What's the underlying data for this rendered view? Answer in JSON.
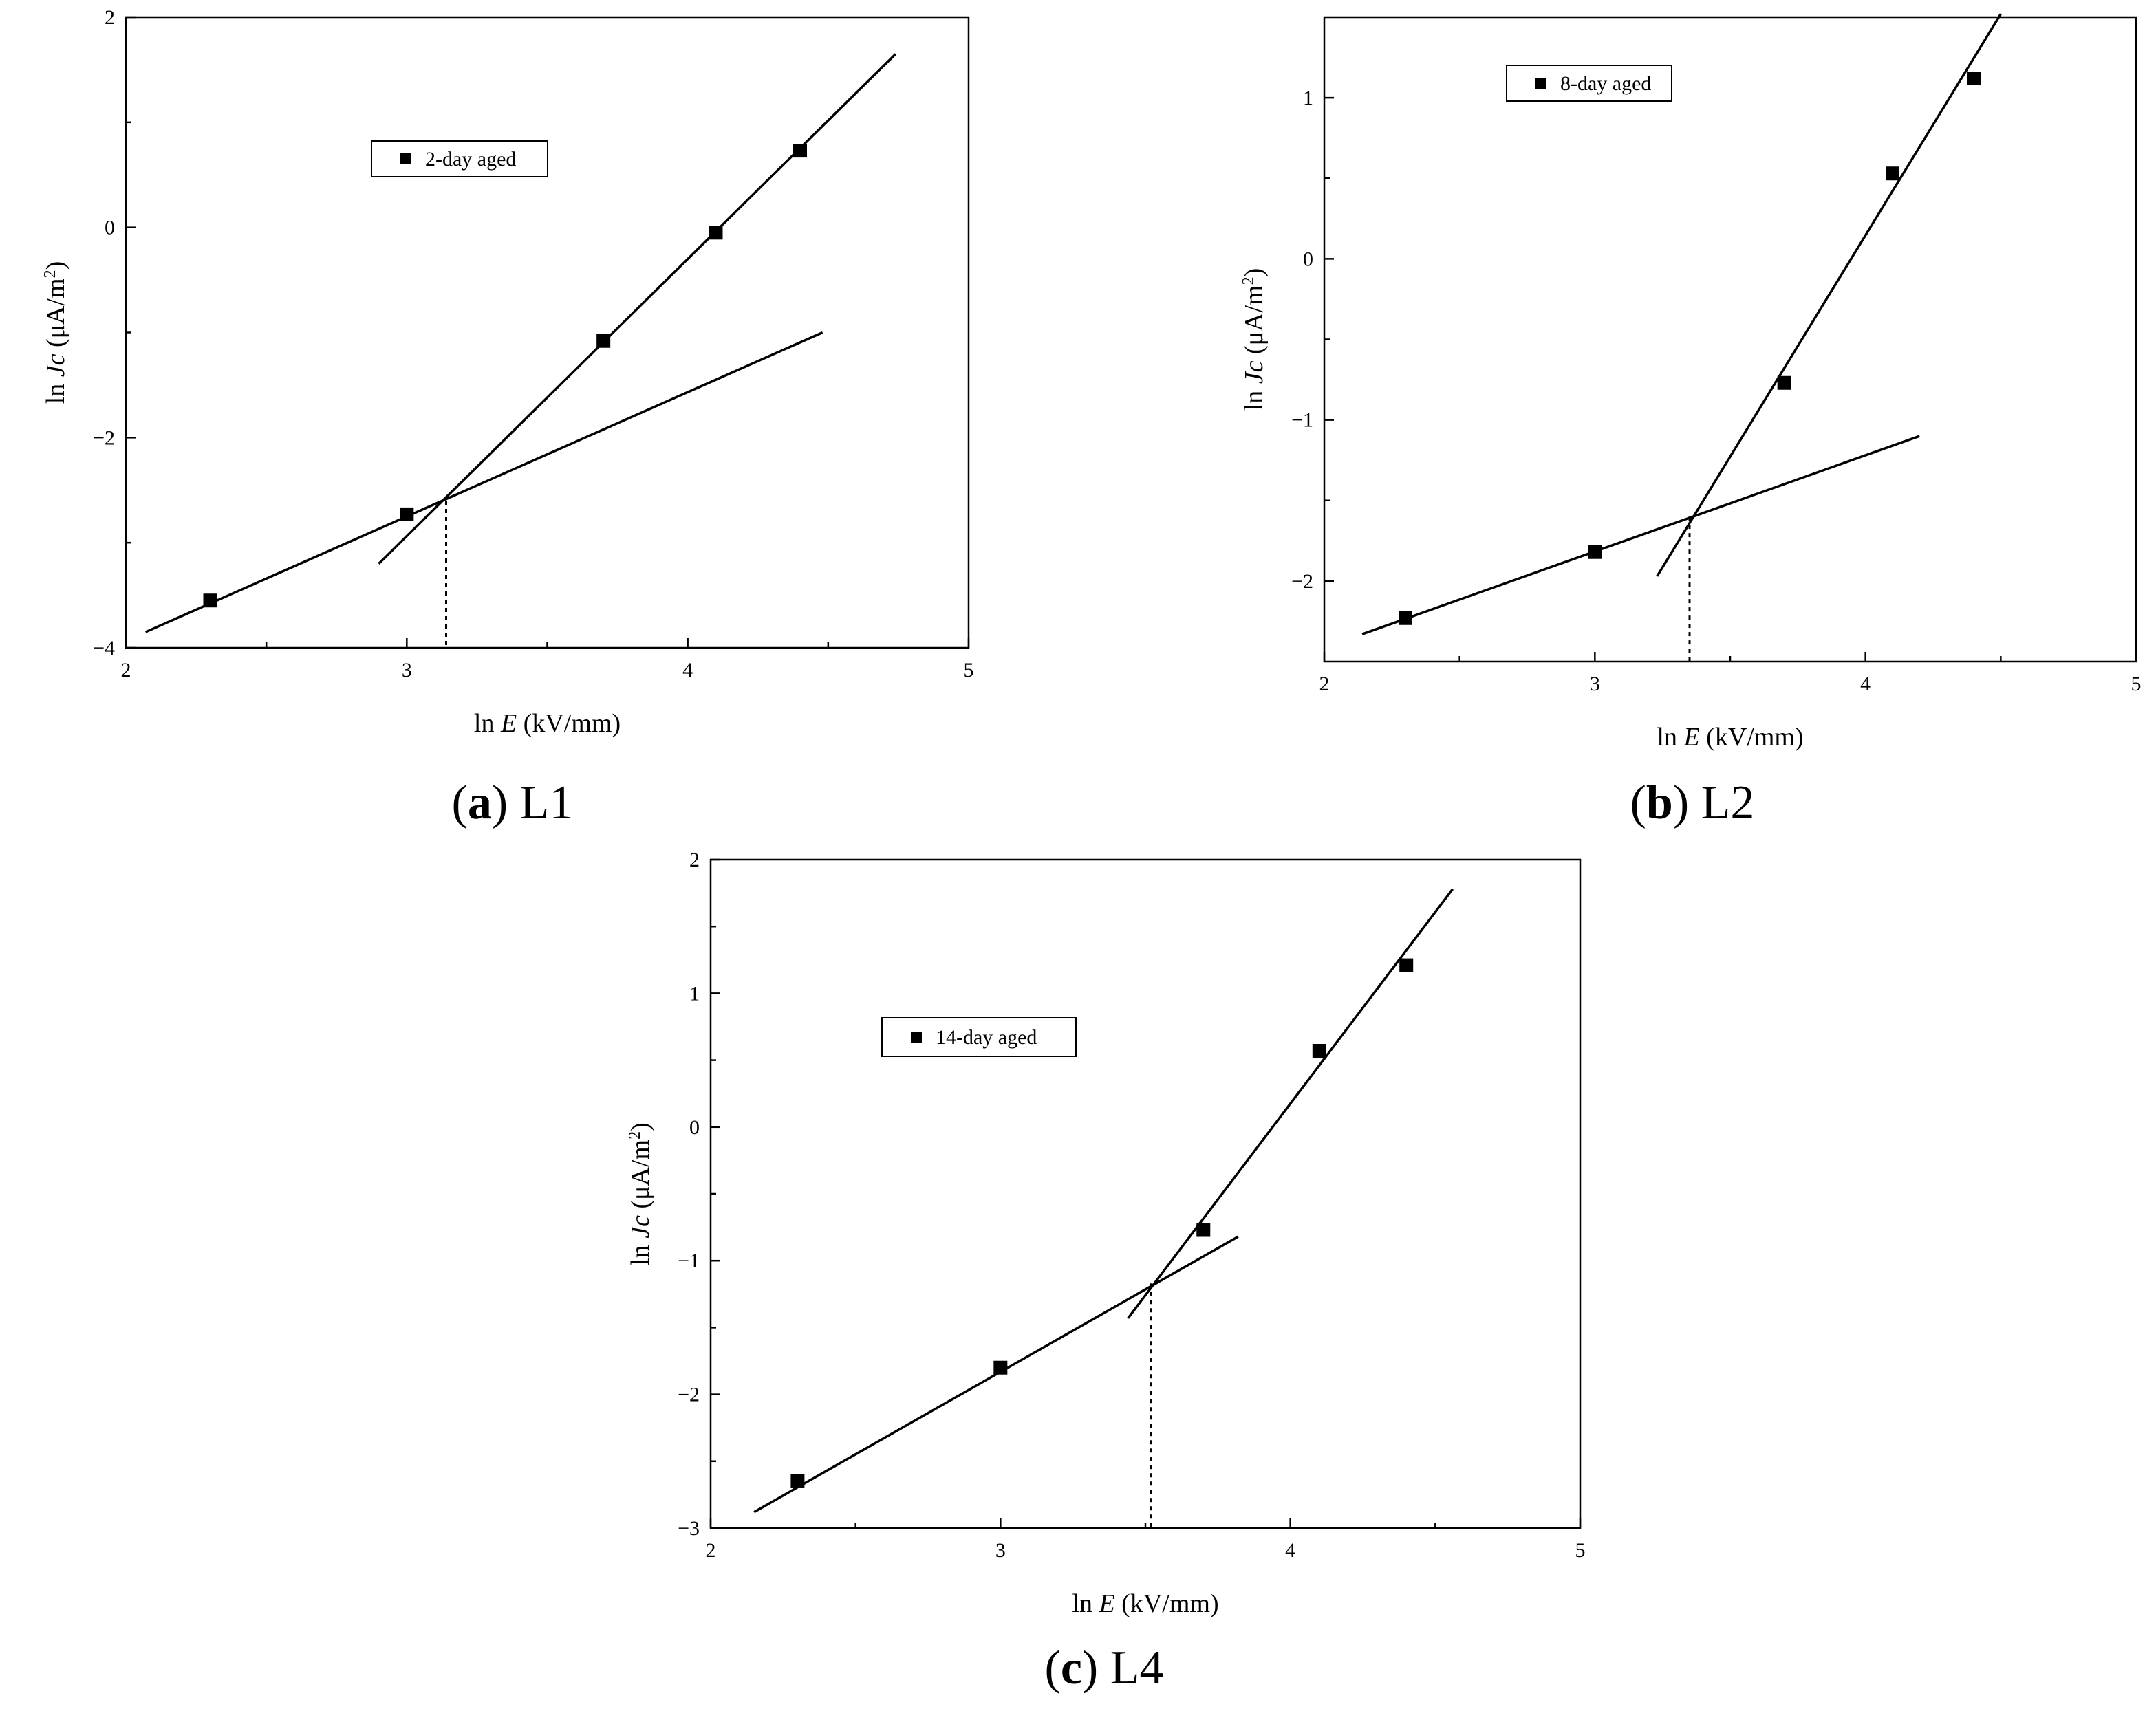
{
  "chart_data": [
    {
      "type": "scatter",
      "caption_letter": "a",
      "caption_name": "L1",
      "xlabel_prefix": "ln ",
      "xlabel_var": "E",
      "xlabel_unit": " (kV/mm)",
      "ylabel_prefix": "ln ",
      "ylabel_var": "Jc",
      "ylabel_unit": " (μA/m",
      "ylabel_sup": "2",
      "ylabel_close": ")",
      "xlim": [
        2,
        5
      ],
      "ylim": [
        -4,
        2
      ],
      "xticks": [
        2,
        3,
        4,
        5
      ],
      "xtick_labels": [
        "2",
        "3",
        "4",
        "5"
      ],
      "yticks": [
        -4,
        -2,
        0,
        2
      ],
      "ytick_labels": [
        "−4",
        "−2",
        "0",
        "2"
      ],
      "legend": "2-day aged",
      "legend_position": "upper-left",
      "series": [
        {
          "name": "2-day aged",
          "x": [
            2.3,
            3.0,
            3.7,
            4.1,
            4.4
          ],
          "y": [
            -3.55,
            -2.73,
            -1.08,
            -0.05,
            0.73
          ]
        }
      ],
      "fit_lines": [
        {
          "x": [
            2.07,
            4.48
          ],
          "y": [
            -3.85,
            -1.0
          ]
        },
        {
          "x": [
            2.9,
            4.74
          ],
          "y": [
            -3.2,
            1.65
          ]
        }
      ],
      "threshold_x": 3.14,
      "threshold_y": -2.6
    },
    {
      "type": "scatter",
      "caption_letter": "b",
      "caption_name": "L2",
      "xlabel_prefix": "ln ",
      "xlabel_var": "E",
      "xlabel_unit": " (kV/mm)",
      "ylabel_prefix": "ln ",
      "ylabel_var": "Jc",
      "ylabel_unit": " (μA/m",
      "ylabel_sup": "2",
      "ylabel_close": ")",
      "xlim": [
        2,
        5
      ],
      "ylim": [
        -2.5,
        1.5
      ],
      "xticks": [
        2,
        3,
        4,
        5
      ],
      "xtick_labels": [
        "2",
        "3",
        "4",
        "5"
      ],
      "yticks": [
        -2,
        -1,
        0,
        1
      ],
      "ytick_labels": [
        "−2",
        "−1",
        "0",
        "1"
      ],
      "legend": "8-day aged",
      "legend_position": "upper-left",
      "series": [
        {
          "name": "8-day aged",
          "x": [
            2.3,
            3.0,
            3.7,
            4.1,
            4.4
          ],
          "y": [
            -2.23,
            -1.82,
            -0.77,
            0.53,
            1.12
          ]
        }
      ],
      "fit_lines": [
        {
          "x": [
            2.14,
            4.2
          ],
          "y": [
            -2.33,
            -1.1
          ]
        },
        {
          "x": [
            3.23,
            4.5
          ],
          "y": [
            -1.97,
            1.52
          ]
        }
      ],
      "threshold_x": 3.35,
      "threshold_y": -1.6
    },
    {
      "type": "scatter",
      "caption_letter": "c",
      "caption_name": "L4",
      "xlabel_prefix": "ln ",
      "xlabel_var": "E",
      "xlabel_unit": " (kV/mm)",
      "ylabel_prefix": "ln ",
      "ylabel_var": "Jc",
      "ylabel_unit": " (μA/m",
      "ylabel_sup": "2",
      "ylabel_close": ")",
      "xlim": [
        2,
        5
      ],
      "ylim": [
        -3,
        2
      ],
      "xticks": [
        2,
        3,
        4,
        5
      ],
      "xtick_labels": [
        "2",
        "3",
        "4",
        "5"
      ],
      "yticks": [
        -3,
        -2,
        -1,
        0,
        1,
        2
      ],
      "ytick_labels": [
        "−3",
        "−2",
        "−1",
        "0",
        "1",
        "2"
      ],
      "legend": "14-day aged",
      "legend_position": "upper-left",
      "series": [
        {
          "name": "14-day aged",
          "x": [
            2.3,
            3.0,
            3.7,
            4.1,
            4.4
          ],
          "y": [
            -2.65,
            -1.8,
            -0.77,
            0.57,
            1.21
          ]
        }
      ],
      "fit_lines": [
        {
          "x": [
            2.15,
            3.82
          ],
          "y": [
            -2.88,
            -0.82
          ]
        },
        {
          "x": [
            3.44,
            4.56
          ],
          "y": [
            -1.43,
            1.78
          ]
        }
      ],
      "threshold_x": 3.52,
      "threshold_y": -1.17
    }
  ]
}
